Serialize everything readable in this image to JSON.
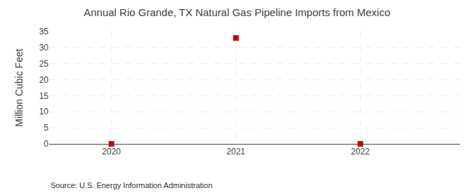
{
  "chart_data": {
    "type": "scatter",
    "title": "Annual Rio Grande, TX Natural Gas Pipeline Imports from Mexico",
    "ylabel": "Million Cubic Feet",
    "annotations": [
      "Source: U.S. Energy Information Administration"
    ],
    "x": [
      2020,
      2021,
      2022
    ],
    "values": [
      0,
      33,
      0
    ],
    "color": "#cc0000",
    "marker": "square",
    "xlim": [
      2019.5,
      2022.8
    ],
    "xticks": [
      2020,
      2021,
      2022
    ],
    "ylim": [
      0,
      35
    ],
    "yticks": [
      0,
      5,
      10,
      15,
      20,
      25,
      30,
      35
    ],
    "grid": true
  }
}
